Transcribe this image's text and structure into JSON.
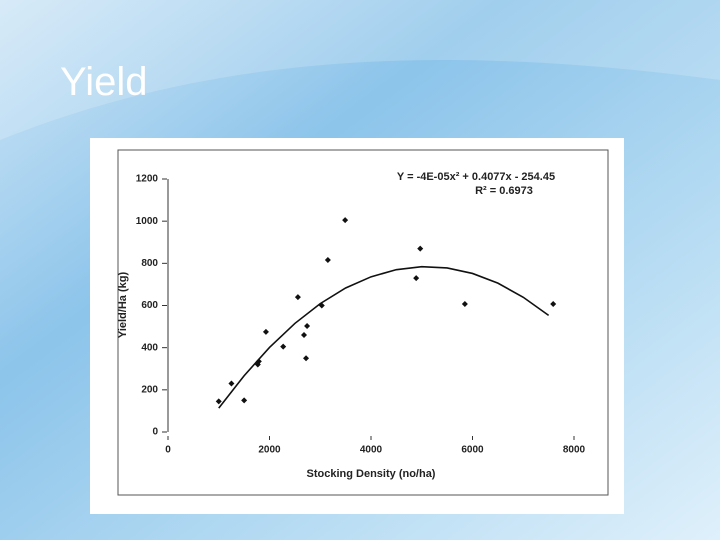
{
  "slide_title": "Yield",
  "chart_data": {
    "type": "scatter",
    "x_label": "Stocking Density (no/ha)",
    "y_label": "Yield/Ha (kg)",
    "annotations": [
      "Y = -4E-05x² + 0.4077x - 254.45",
      "R² = 0.6973"
    ],
    "xlim": [
      0,
      8000
    ],
    "xticks": [
      0,
      2000,
      4000,
      6000,
      8000
    ],
    "ylim": [
      0,
      1200
    ],
    "yticks": [
      0,
      200,
      400,
      600,
      800,
      1000,
      1200
    ],
    "color": "#111111",
    "x": [
      1000,
      1250,
      1500,
      1770,
      1790,
      1930,
      2270,
      2560,
      2680,
      2740,
      2720,
      3030,
      3150,
      3490,
      4890,
      4970,
      5850,
      7590
    ],
    "values": [
      145,
      230,
      150,
      320,
      335,
      475,
      405,
      640,
      460,
      503,
      350,
      600,
      816,
      1005,
      730,
      870,
      607,
      607
    ],
    "trendline": {
      "x": [
        1000,
        1500,
        2000,
        2500,
        3000,
        3500,
        4000,
        4500,
        5000,
        5500,
        6000,
        6500,
        7000,
        7500
      ],
      "values": [
        113,
        267,
        401,
        515,
        609,
        683,
        736,
        770,
        784,
        778,
        752,
        706,
        639,
        553
      ]
    }
  }
}
